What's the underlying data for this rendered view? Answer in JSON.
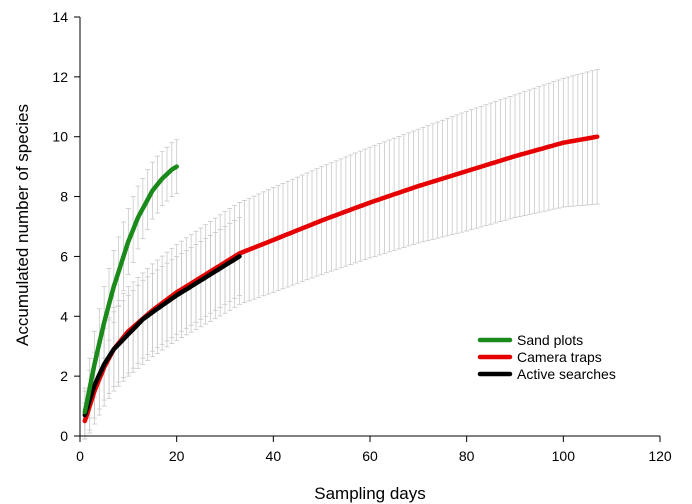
{
  "chart_data": {
    "type": "line",
    "xlabel": "Sampling days",
    "ylabel": "Accumulated number of species",
    "xlim": [
      0,
      120
    ],
    "ylim": [
      0,
      14
    ],
    "x_ticks": [
      "0",
      "20",
      "40",
      "60",
      "80",
      "100",
      "120"
    ],
    "y_ticks": [
      "0",
      "2",
      "4",
      "6",
      "8",
      "10",
      "12",
      "14"
    ],
    "grid": false,
    "legend_position": "bottom-right",
    "error_bar_color": "#c8c8c8",
    "series": [
      {
        "name": "Sand plots",
        "color": "#1a8a1a",
        "x": [
          1,
          2,
          3,
          4,
          5,
          6,
          7,
          8,
          9,
          10,
          11,
          12,
          13,
          14,
          15,
          16,
          17,
          18,
          19,
          20
        ],
        "y": [
          0.8,
          1.6,
          2.4,
          3.1,
          3.8,
          4.4,
          5.0,
          5.5,
          6.0,
          6.5,
          6.9,
          7.3,
          7.6,
          7.9,
          8.2,
          8.4,
          8.6,
          8.75,
          8.9,
          9.0
        ],
        "sd": [
          0.8,
          1.0,
          1.1,
          1.15,
          1.2,
          1.2,
          1.2,
          1.15,
          1.15,
          1.1,
          1.1,
          1.05,
          1.0,
          1.0,
          0.95,
          0.95,
          0.9,
          0.9,
          0.9,
          0.9
        ]
      },
      {
        "name": "Camera traps",
        "color": "#e60000",
        "x": [
          1,
          2,
          3,
          5,
          7,
          10,
          15,
          20,
          25,
          30,
          33,
          40,
          50,
          60,
          70,
          80,
          90,
          100,
          107
        ],
        "y": [
          0.5,
          1.0,
          1.5,
          2.3,
          2.9,
          3.5,
          4.2,
          4.8,
          5.3,
          5.8,
          6.1,
          6.55,
          7.2,
          7.8,
          8.35,
          8.85,
          9.35,
          9.8,
          10.0
        ],
        "sd": [
          0.6,
          0.9,
          1.1,
          1.3,
          1.4,
          1.5,
          1.55,
          1.6,
          1.65,
          1.7,
          1.7,
          1.75,
          1.8,
          1.85,
          1.9,
          2.0,
          2.05,
          2.15,
          2.25
        ]
      },
      {
        "name": "Active searches",
        "color": "#000000",
        "x": [
          1,
          2,
          3,
          5,
          7,
          10,
          13,
          16,
          20,
          25,
          30,
          33
        ],
        "y": [
          0.7,
          1.2,
          1.7,
          2.4,
          2.9,
          3.4,
          3.9,
          4.25,
          4.7,
          5.2,
          5.7,
          6.0
        ],
        "sd": [
          0.8,
          1.0,
          1.1,
          1.2,
          1.25,
          1.3,
          1.3,
          1.3,
          1.3,
          1.3,
          1.3,
          1.3
        ]
      }
    ]
  }
}
